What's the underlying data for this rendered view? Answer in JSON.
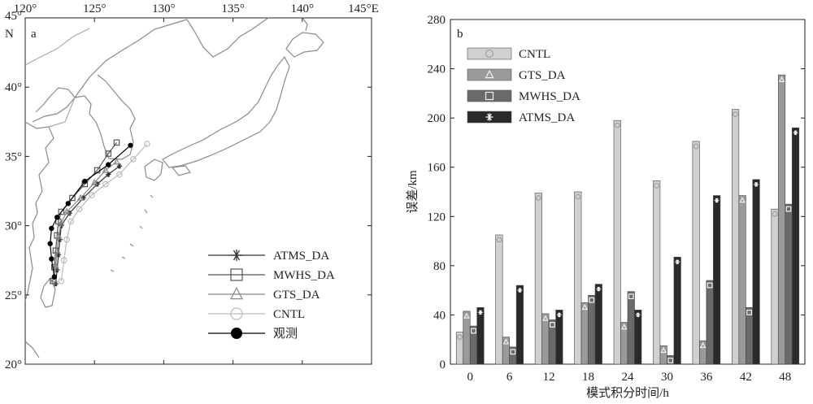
{
  "map_panel": {
    "label": "a",
    "lon_ticks": [
      "120°",
      "125°",
      "130°",
      "135°",
      "140°",
      "145°E"
    ],
    "lon_values": [
      120,
      125,
      130,
      135,
      140,
      145
    ],
    "lat_ticks": [
      "45°",
      "40°",
      "35°",
      "30°",
      "25°",
      "20°"
    ],
    "lat_values": [
      45,
      40,
      35,
      30,
      25,
      20
    ],
    "north_label": "N",
    "lon_range": [
      120,
      145
    ],
    "lat_range": [
      20,
      45
    ],
    "tracks": [
      {
        "name": "ATMS_DA",
        "color": "#333333",
        "marker": "asterisk",
        "points": [
          [
            122.2,
            25.8
          ],
          [
            122.3,
            26.8
          ],
          [
            122.4,
            27.9
          ],
          [
            122.5,
            29.0
          ],
          [
            122.6,
            30.0
          ],
          [
            123.2,
            30.9
          ],
          [
            124.2,
            32.0
          ],
          [
            125.2,
            33.0
          ],
          [
            126.0,
            33.7
          ],
          [
            126.8,
            34.3
          ]
        ]
      },
      {
        "name": "MWHS_DA",
        "color": "#555555",
        "marker": "square",
        "points": [
          [
            122.0,
            26.0
          ],
          [
            122.1,
            27.0
          ],
          [
            122.2,
            28.2
          ],
          [
            122.3,
            29.3
          ],
          [
            122.4,
            30.3
          ],
          [
            122.6,
            31.0
          ],
          [
            123.4,
            32.0
          ],
          [
            124.3,
            33.0
          ],
          [
            125.2,
            34.0
          ],
          [
            126.0,
            35.2
          ],
          [
            126.6,
            36.0
          ]
        ]
      },
      {
        "name": "GTS_DA",
        "color": "#888888",
        "marker": "triangle",
        "points": [
          [
            122.1,
            26.1
          ],
          [
            122.2,
            27.1
          ],
          [
            122.3,
            28.2
          ],
          [
            122.4,
            29.2
          ],
          [
            122.6,
            30.2
          ],
          [
            123.0,
            31.0
          ],
          [
            124.0,
            32.0
          ],
          [
            125.0,
            33.1
          ],
          [
            125.8,
            34.0
          ],
          [
            126.6,
            34.6
          ]
        ]
      },
      {
        "name": "CNTL",
        "color": "#bbbbbb",
        "marker": "circle",
        "points": [
          [
            122.6,
            26.0
          ],
          [
            122.8,
            27.5
          ],
          [
            123.0,
            29.0
          ],
          [
            123.3,
            30.3
          ],
          [
            123.9,
            31.2
          ],
          [
            124.8,
            32.2
          ],
          [
            125.8,
            33.0
          ],
          [
            126.8,
            33.7
          ],
          [
            127.8,
            34.8
          ],
          [
            128.8,
            35.9
          ]
        ]
      },
      {
        "name": "观测",
        "color": "#000000",
        "marker": "dot",
        "points": [
          [
            122.1,
            26.3
          ],
          [
            121.9,
            27.6
          ],
          [
            121.8,
            28.7
          ],
          [
            121.9,
            29.8
          ],
          [
            122.3,
            30.6
          ],
          [
            123.1,
            31.6
          ],
          [
            124.3,
            33.2
          ],
          [
            126.0,
            34.4
          ],
          [
            127.6,
            35.8
          ]
        ]
      }
    ],
    "legend": [
      "ATMS_DA",
      "MWHS_DA",
      "GTS_DA",
      "CNTL",
      "观测"
    ]
  },
  "chart_data": {
    "type": "bar",
    "label": "b",
    "categories": [
      "0",
      "6",
      "12",
      "18",
      "24",
      "30",
      "36",
      "42",
      "48"
    ],
    "series": [
      {
        "name": "CNTL",
        "color": "#d0d0d0",
        "marker": "circle",
        "values": [
          26,
          105,
          139,
          140,
          198,
          149,
          181,
          207,
          126
        ]
      },
      {
        "name": "GTS_DA",
        "color": "#9a9a9a",
        "marker": "triangle",
        "values": [
          43,
          22,
          41,
          50,
          34,
          15,
          19,
          137,
          235
        ]
      },
      {
        "name": "MWHS_DA",
        "color": "#6a6a6a",
        "marker": "square",
        "values": [
          31,
          14,
          36,
          56,
          59,
          7,
          68,
          46,
          130
        ]
      },
      {
        "name": "ATMS_DA",
        "color": "#2a2a2a",
        "marker": "asterisk",
        "values": [
          46,
          64,
          44,
          65,
          44,
          87,
          137,
          150,
          192
        ]
      }
    ],
    "xlabel": "模式积分时间/h",
    "ylabel": "误差/km",
    "ylim": [
      0,
      280
    ],
    "yticks": [
      0,
      40,
      80,
      120,
      160,
      200,
      240,
      280
    ],
    "legend_position": "top-left",
    "grid": false
  }
}
